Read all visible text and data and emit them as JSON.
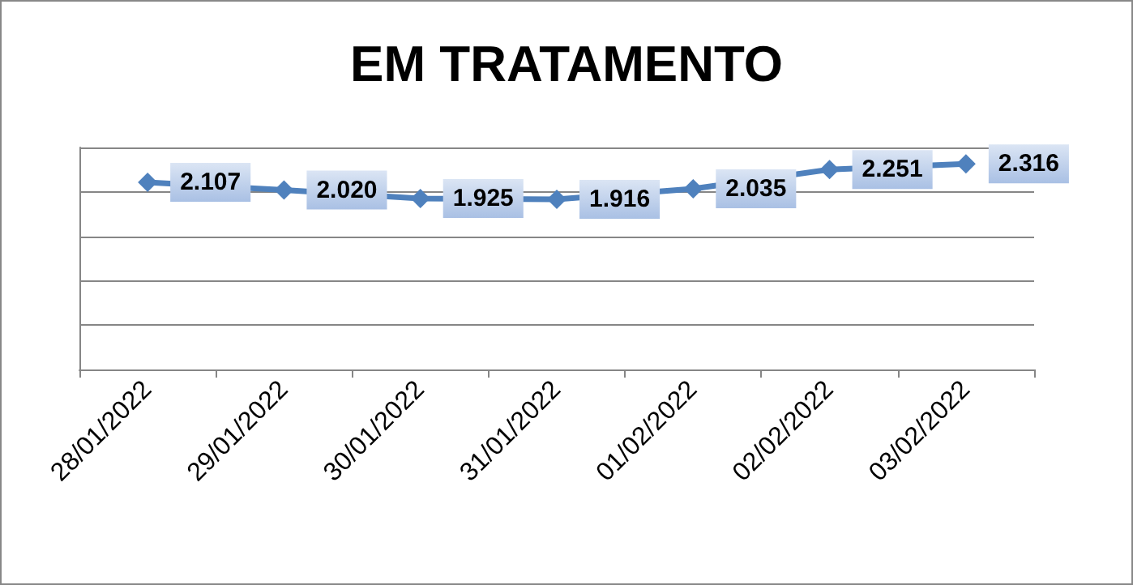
{
  "chart_data": {
    "type": "line",
    "title": "EM TRATAMENTO",
    "categories": [
      "28/01/2022",
      "29/01/2022",
      "30/01/2022",
      "31/01/2022",
      "01/02/2022",
      "02/02/2022",
      "03/02/2022"
    ],
    "series": [
      {
        "color": "#4f81bd",
        "values": [
          2107,
          2020,
          1925,
          1916,
          2035,
          2251,
          2316
        ],
        "value_labels": [
          "2.107",
          "2.020",
          "1.925",
          "1.916",
          "2.035",
          "2.251",
          "2.316"
        ]
      }
    ],
    "ylim": [
      0,
      2500
    ],
    "yticks": [
      0,
      500,
      1000,
      1500,
      2000,
      2500
    ],
    "tick_labels": "x",
    "grid": "y",
    "marker": "diamond",
    "line_style": "solid"
  }
}
